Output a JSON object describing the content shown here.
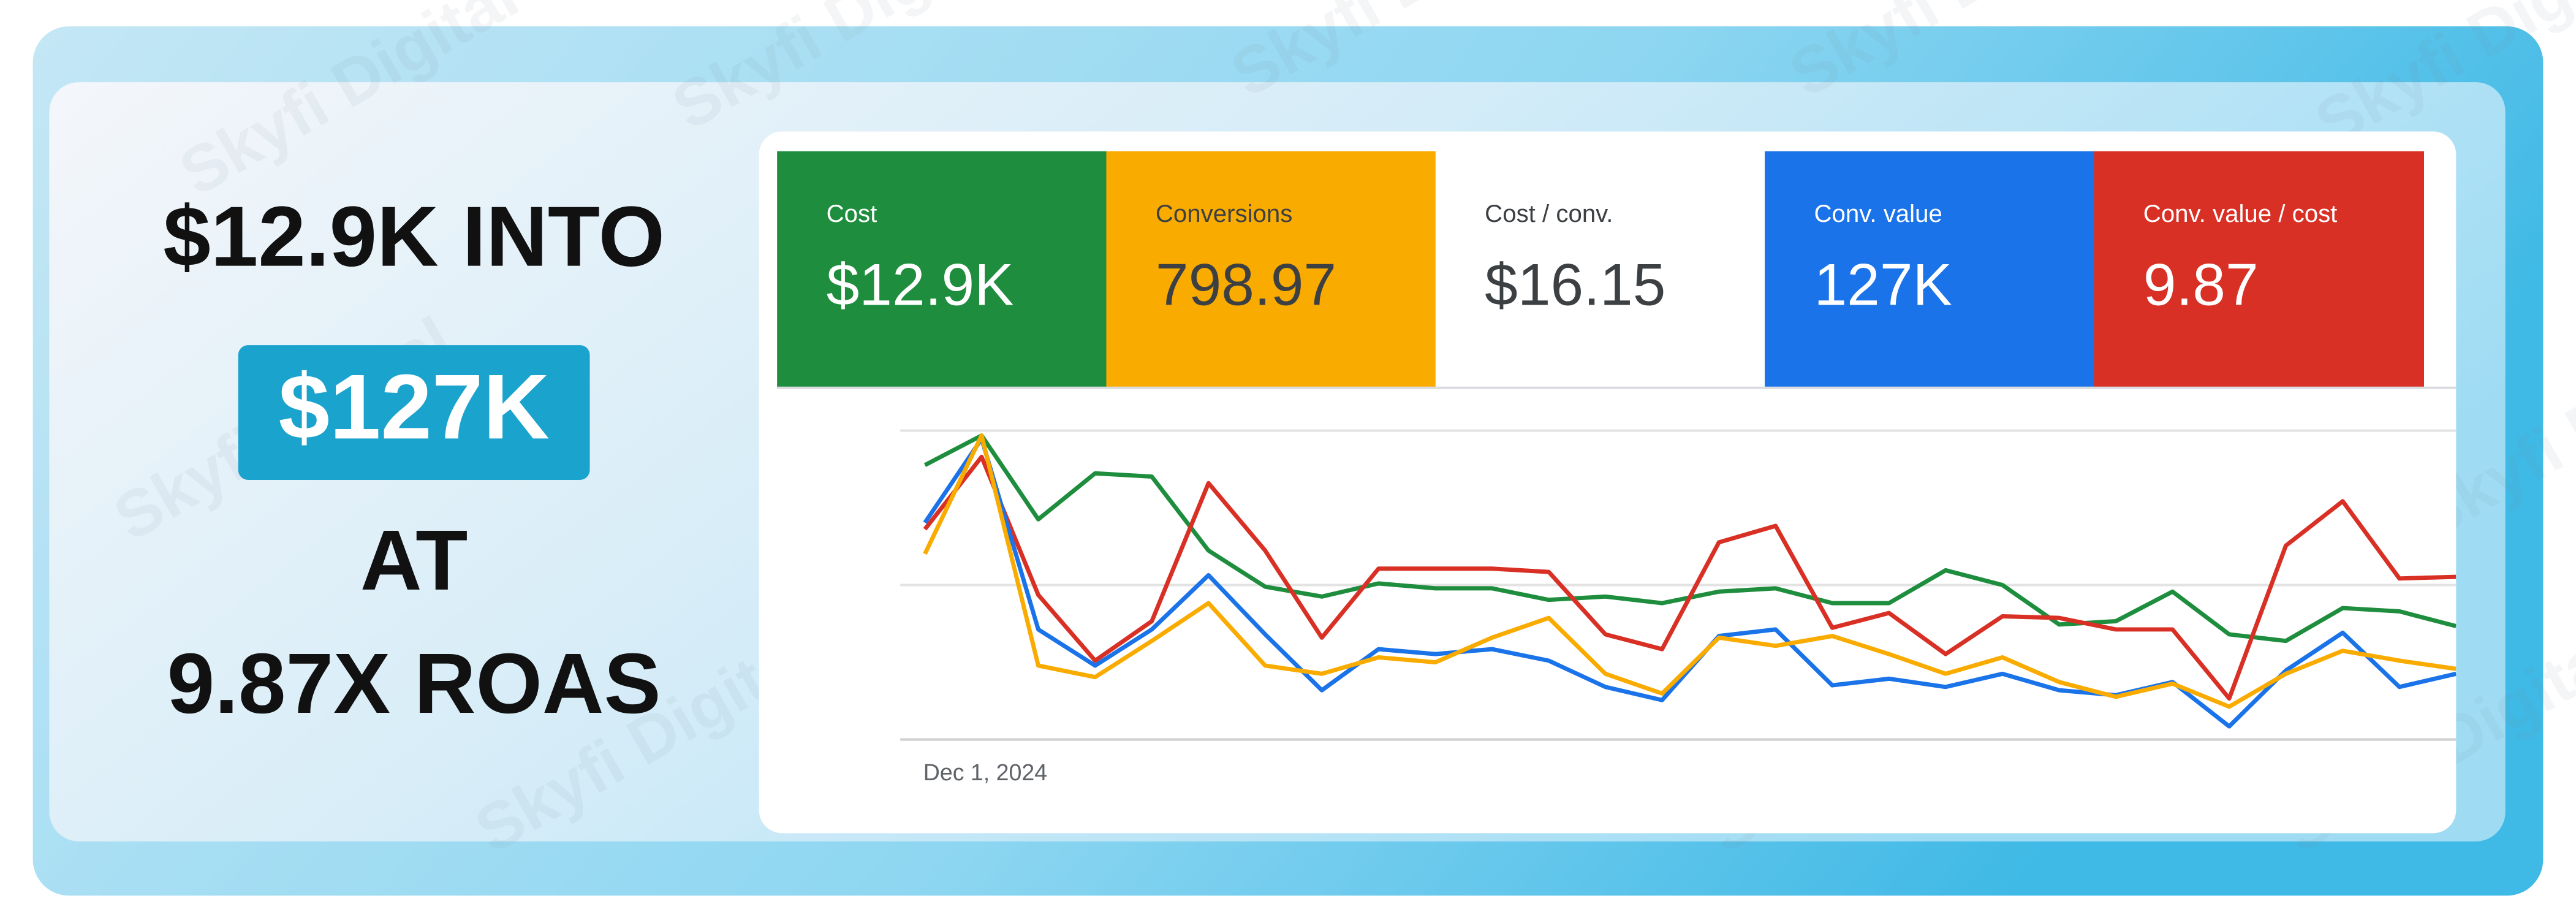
{
  "headline": {
    "line1": "$12.9K INTO",
    "highlight": "$127K",
    "line3": "AT",
    "line4": "9.87X ROAS"
  },
  "watermark": "Skyfi Digital",
  "tiles": [
    {
      "label": "Cost",
      "value": "$12.9K",
      "color": "#1e8e3e"
    },
    {
      "label": "Conversions",
      "value": "798.97",
      "color": "#f9ab00"
    },
    {
      "label": "Cost / conv.",
      "value": "$16.15",
      "color": "#ffffff"
    },
    {
      "label": "Conv. value",
      "value": "127K",
      "color": "#1a73e8"
    },
    {
      "label": "Conv. value / cost",
      "value": "9.87",
      "color": "#d93025"
    }
  ],
  "chart_data": {
    "type": "line",
    "categories": [
      "Dec 1, 2024",
      null,
      null,
      null,
      null,
      null,
      null,
      null,
      null,
      null,
      null,
      null,
      null,
      null,
      null,
      null,
      null,
      null,
      null,
      null,
      null,
      null,
      null,
      null,
      null,
      null,
      null,
      null
    ],
    "ylim": [
      0,
      200
    ],
    "series": [
      {
        "color": "#1e8e3e",
        "values": [
          167,
          185,
          134,
          162,
          160,
          115,
          93,
          87,
          95,
          92,
          92,
          85,
          87,
          83,
          90,
          92,
          83,
          83,
          103,
          94,
          70,
          72,
          90,
          64,
          60,
          80,
          78,
          69
        ]
      },
      {
        "color": "#d93025",
        "values": [
          128,
          172,
          88,
          48,
          72,
          156,
          115,
          62,
          104,
          104,
          104,
          102,
          64,
          55,
          120,
          130,
          68,
          77,
          52,
          75,
          74,
          67,
          67,
          25,
          118,
          145,
          98,
          99
        ]
      },
      {
        "color": "#1a73e8",
        "values": [
          132,
          183,
          67,
          45,
          67,
          100,
          64,
          30,
          55,
          52,
          55,
          48,
          32,
          24,
          63,
          67,
          33,
          37,
          32,
          40,
          30,
          27,
          35,
          8,
          42,
          65,
          32,
          40
        ]
      },
      {
        "color": "#f9ab00",
        "values": [
          113,
          185,
          45,
          38,
          60,
          83,
          45,
          40,
          50,
          47,
          62,
          74,
          40,
          28,
          62,
          57,
          63,
          52,
          40,
          50,
          35,
          26,
          34,
          20,
          40,
          54,
          48,
          43
        ]
      }
    ]
  }
}
